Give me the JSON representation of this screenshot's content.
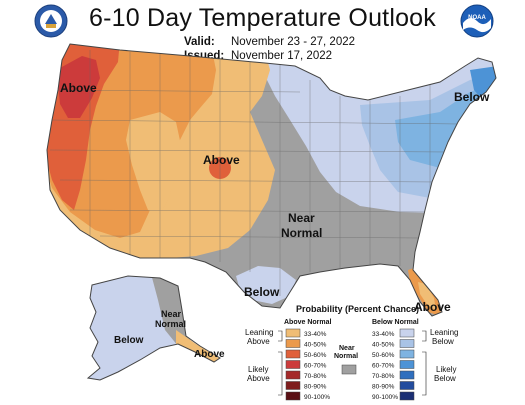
{
  "header": {
    "title": "6-10 Day Temperature Outlook",
    "valid_label": "Valid:",
    "valid_value": "November 23 - 27, 2022",
    "issued_label": "Issued:",
    "issued_value": "November 17, 2022"
  },
  "logos": {
    "left": "noaa-commerce-seal",
    "right": "noaa-logo"
  },
  "map": {
    "labels": {
      "above_west": "Above",
      "above_center": "Above",
      "below_northeast": "Below",
      "near_normal_center_1": "Near",
      "near_normal_center_2": "Normal",
      "below_texas": "Below",
      "above_florida": "Above",
      "below_alaska": "Below",
      "near_normal_alaska_1": "Near",
      "near_normal_alaska_2": "Normal",
      "above_alaska": "Above"
    }
  },
  "legend": {
    "title": "Probability (Percent Chance)",
    "above_header": "Above Normal",
    "below_header": "Below Normal",
    "near_label_1": "Near",
    "near_label_2": "Normal",
    "leaning_above_1": "Leaning",
    "leaning_above_2": "Above",
    "likely_above_1": "Likely",
    "likely_above_2": "Above",
    "leaning_below_1": "Leaning",
    "leaning_below_2": "Below",
    "likely_below_1": "Likely",
    "likely_below_2": "Below",
    "ranges": [
      "33-40%",
      "40-50%",
      "50-60%",
      "60-70%",
      "70-80%",
      "80-90%",
      "90-100%"
    ],
    "above_colors": [
      "#f0bd75",
      "#eb9a4c",
      "#e0603a",
      "#cc3b3b",
      "#a52a2a",
      "#7f1d1d",
      "#5a0f14"
    ],
    "below_colors": [
      "#c9d3ec",
      "#a9c3e6",
      "#7eb3e1",
      "#4d93d6",
      "#2f6fbe",
      "#234c9e",
      "#1b2f74"
    ],
    "near_color": "#a0a0a0"
  }
}
